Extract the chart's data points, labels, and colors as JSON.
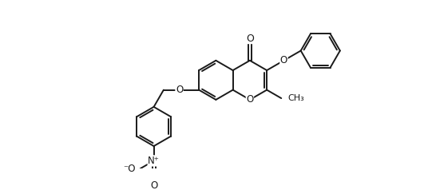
{
  "bg_color": "#ffffff",
  "line_color": "#1a1a1a",
  "line_width": 1.4,
  "font_size": 8.5,
  "figsize": [
    5.36,
    2.38
  ],
  "dpi": 100,
  "xlim": [
    0,
    10
  ],
  "ylim": [
    0,
    4.46
  ]
}
